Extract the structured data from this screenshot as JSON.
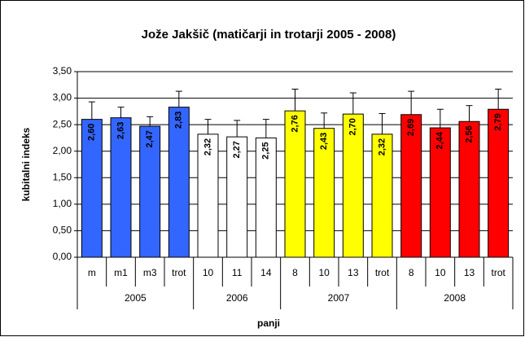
{
  "chart_data": {
    "type": "bar",
    "title": "Jože Jakšič (matičarji in trotarji 2005 - 2008)",
    "y_label": "kubitalni indeks",
    "x_label": "panji",
    "categories": [
      "m",
      "m1",
      "m3",
      "trot",
      "10",
      "11",
      "14",
      "8",
      "10",
      "13",
      "trot",
      "8",
      "10",
      "13",
      "trot"
    ],
    "groups": [
      {
        "label": "2005",
        "count": 4
      },
      {
        "label": "2006",
        "count": 3
      },
      {
        "label": "2007",
        "count": 4
      },
      {
        "label": "2008",
        "count": 4
      }
    ],
    "values": [
      2.6,
      2.63,
      2.47,
      2.83,
      2.32,
      2.27,
      2.25,
      2.76,
      2.43,
      2.7,
      2.32,
      2.69,
      2.44,
      2.56,
      2.79
    ],
    "value_labels": [
      "2,60",
      "2,63",
      "2,47",
      "2,83",
      "2,32",
      "2,27",
      "2,25",
      "2,76",
      "2,43",
      "2,70",
      "2,32",
      "2,69",
      "2,44",
      "2,56",
      "2,79"
    ],
    "errors": [
      0.33,
      0.2,
      0.18,
      0.3,
      0.28,
      0.31,
      0.35,
      0.41,
      0.29,
      0.4,
      0.39,
      0.44,
      0.35,
      0.3,
      0.38
    ],
    "colors": [
      "#3366ff",
      "#3366ff",
      "#3366ff",
      "#3366ff",
      "#ffffff",
      "#ffffff",
      "#ffffff",
      "#ffff00",
      "#ffff00",
      "#ffff00",
      "#ffff00",
      "#ff0000",
      "#ff0000",
      "#ff0000",
      "#ff0000"
    ],
    "ylim": [
      0,
      3.5
    ],
    "yticks": [
      {
        "value": 0,
        "label": "0,00"
      },
      {
        "value": 0.5,
        "label": "0,50"
      },
      {
        "value": 1,
        "label": "1,00"
      },
      {
        "value": 1.5,
        "label": "1,50"
      },
      {
        "value": 2,
        "label": "2,00"
      },
      {
        "value": 2.5,
        "label": "2,50"
      },
      {
        "value": 3,
        "label": "3,00"
      },
      {
        "value": 3.5,
        "label": "3,50"
      }
    ],
    "grid": true
  }
}
